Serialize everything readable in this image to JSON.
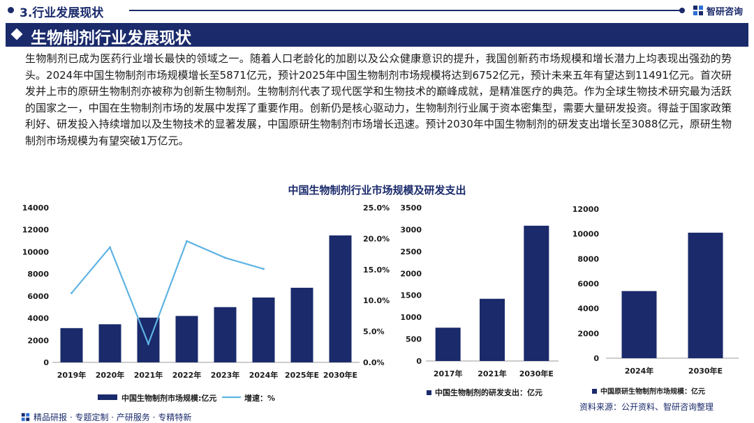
{
  "header": {
    "section_label": "3.行业发展现状",
    "brand_name": "智研咨询",
    "banner_title": "生物制剂行业发展现状"
  },
  "paragraph": "生物制剂已成为医药行业增长最快的领域之一。随着人口老龄化的加剧以及公众健康意识的提升，我国创新药市场规模和增长潜力上均表现出强劲的势头。2024年中国生物制剂市场规模增长至5871亿元，预计2025年中国生物制剂市场规模将达到6752亿元，预计未来五年有望达到11491亿元。首次研发并上市的原研生物制剂亦被称为创新生物制剂。生物制剂代表了现代医学和生物技术的巅峰成就，是精准医疗的典范。作为全球生物技术研究最为活跃的国家之一，中国在生物制剂市场的发展中发挥了重要作用。创新仍是核心驱动力，生物制剂行业属于资本密集型，需要大量研发投资。得益于国家政策利好、研发投入持续增加以及生物技术的显著发展，中国原研生物制剂市场增长迅速。预计2030年中国生物制剂的研发支出增长至3088亿元，原研生物制剂市场规模为有望突破1万亿元。",
  "chart_section_title": "中国生物制剂行业市场规模及研发支出",
  "chart_data": [
    {
      "type": "bar",
      "title": "中国生物制剂行业市场规模及研发支出",
      "categories": [
        "2019年",
        "2020年",
        "2021年",
        "2022年",
        "2023年",
        "2024年",
        "2025年E",
        "2030年E"
      ],
      "series": [
        {
          "name": "中国生物制剂市场规模:亿元",
          "type": "bar",
          "axis": "left",
          "values": [
            3100,
            3450,
            4050,
            4200,
            5000,
            5871,
            6752,
            11491
          ]
        },
        {
          "name": "增速：%",
          "type": "line",
          "axis": "right",
          "values": [
            11.2,
            18.6,
            3.0,
            19.6,
            16.9,
            15.1,
            null,
            null
          ]
        }
      ],
      "ylim": [
        0,
        14000
      ],
      "yticks": [
        0,
        2000,
        4000,
        6000,
        8000,
        10000,
        12000,
        14000
      ],
      "y2lim": [
        0,
        25
      ],
      "y2ticks": [
        "0.0%",
        "5.0%",
        "10.0%",
        "15.0%",
        "20.0%",
        "25.0%"
      ],
      "colors": {
        "bar": "#1a2a6b",
        "line": "#5fb3e3"
      }
    },
    {
      "type": "bar",
      "categories": [
        "2017年",
        "2021年",
        "2030年E"
      ],
      "series": [
        {
          "name": "中国生物制剂的研发支出：亿元",
          "values": [
            760,
            1420,
            3088
          ]
        }
      ],
      "ylim": [
        0,
        3500
      ],
      "yticks": [
        0,
        500,
        1000,
        1500,
        2000,
        2500,
        3000,
        3500
      ],
      "colors": {
        "bar": "#1a2a6b"
      }
    },
    {
      "type": "bar",
      "categories": [
        "2024年",
        "2030年E"
      ],
      "series": [
        {
          "name": "中国原研生物制剂市场规模：亿元",
          "values": [
            5400,
            10100
          ]
        }
      ],
      "ylim": [
        0,
        12000
      ],
      "yticks": [
        0,
        2000,
        4000,
        6000,
        8000,
        10000,
        12000
      ],
      "colors": {
        "bar": "#1a2a6b"
      }
    }
  ],
  "source": "资料来源：公开资料、智研咨询整理",
  "footer": "精品研报 · 专题定制 · 产研服务 · 专精特新"
}
